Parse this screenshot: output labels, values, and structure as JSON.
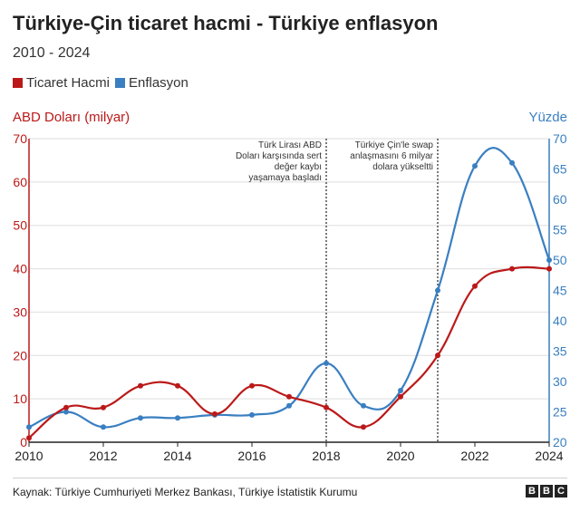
{
  "header": {
    "title": "Türkiye-Çin ticaret hacmi - Türkiye enflasyon",
    "subtitle": "2010 - 2024"
  },
  "legend": {
    "items": [
      {
        "label": "Ticaret Hacmi",
        "color": "#bb1919"
      },
      {
        "label": "Enflasyon",
        "color": "#3a7fc1"
      }
    ]
  },
  "colors": {
    "trade": "#bb1919",
    "inflation": "#3a7fc1",
    "grid": "#dedede",
    "annotation": "#222222"
  },
  "chart_data": {
    "type": "line",
    "x": [
      2010,
      2011,
      2012,
      2013,
      2014,
      2015,
      2016,
      2017,
      2018,
      2019,
      2020,
      2021,
      2022,
      2023,
      2024
    ],
    "series": [
      {
        "name": "Ticaret Hacmi",
        "axis": "left",
        "values": [
          1,
          8,
          8,
          13,
          13,
          6.5,
          13,
          10.5,
          8,
          3.5,
          10.5,
          20,
          36,
          40,
          40
        ]
      },
      {
        "name": "Enflasyon",
        "axis": "right",
        "values": [
          22.5,
          25,
          22.5,
          24,
          24,
          24.5,
          24.5,
          26,
          33,
          26,
          28.5,
          45,
          65.5,
          66,
          50
        ]
      }
    ],
    "xticks": [
      "2010",
      "2012",
      "2014",
      "2016",
      "2018",
      "2020",
      "2022",
      "2024"
    ],
    "xlim": [
      2010,
      2024
    ],
    "y_left": {
      "label": "ABD Doları (milyar)",
      "lim": [
        0,
        70
      ],
      "ticks": [
        "0",
        "10",
        "20",
        "30",
        "40",
        "50",
        "60",
        "70"
      ]
    },
    "y_right": {
      "label": "Yüzde",
      "lim": [
        20,
        70
      ],
      "ticks": [
        "20",
        "25",
        "30",
        "35",
        "40",
        "45",
        "50",
        "55",
        "60",
        "65",
        "70"
      ]
    },
    "grid": true,
    "annotations": [
      {
        "x": 2018,
        "lines": [
          "Türk Lirası ABD",
          "Doları karşısında sert",
          "değer kaybı",
          "yaşamaya başladı"
        ]
      },
      {
        "x": 2021,
        "lines": [
          "Türkiye Çin'le swap",
          "anlaşmasını 6 milyar",
          "dolara yükseltti"
        ]
      }
    ]
  },
  "footer": {
    "source": "Kaynak: Türkiye Cumhuriyeti Merkez Bankası, Türkiye İstatistik Kurumu",
    "logo_letters": [
      "B",
      "B",
      "C"
    ]
  }
}
